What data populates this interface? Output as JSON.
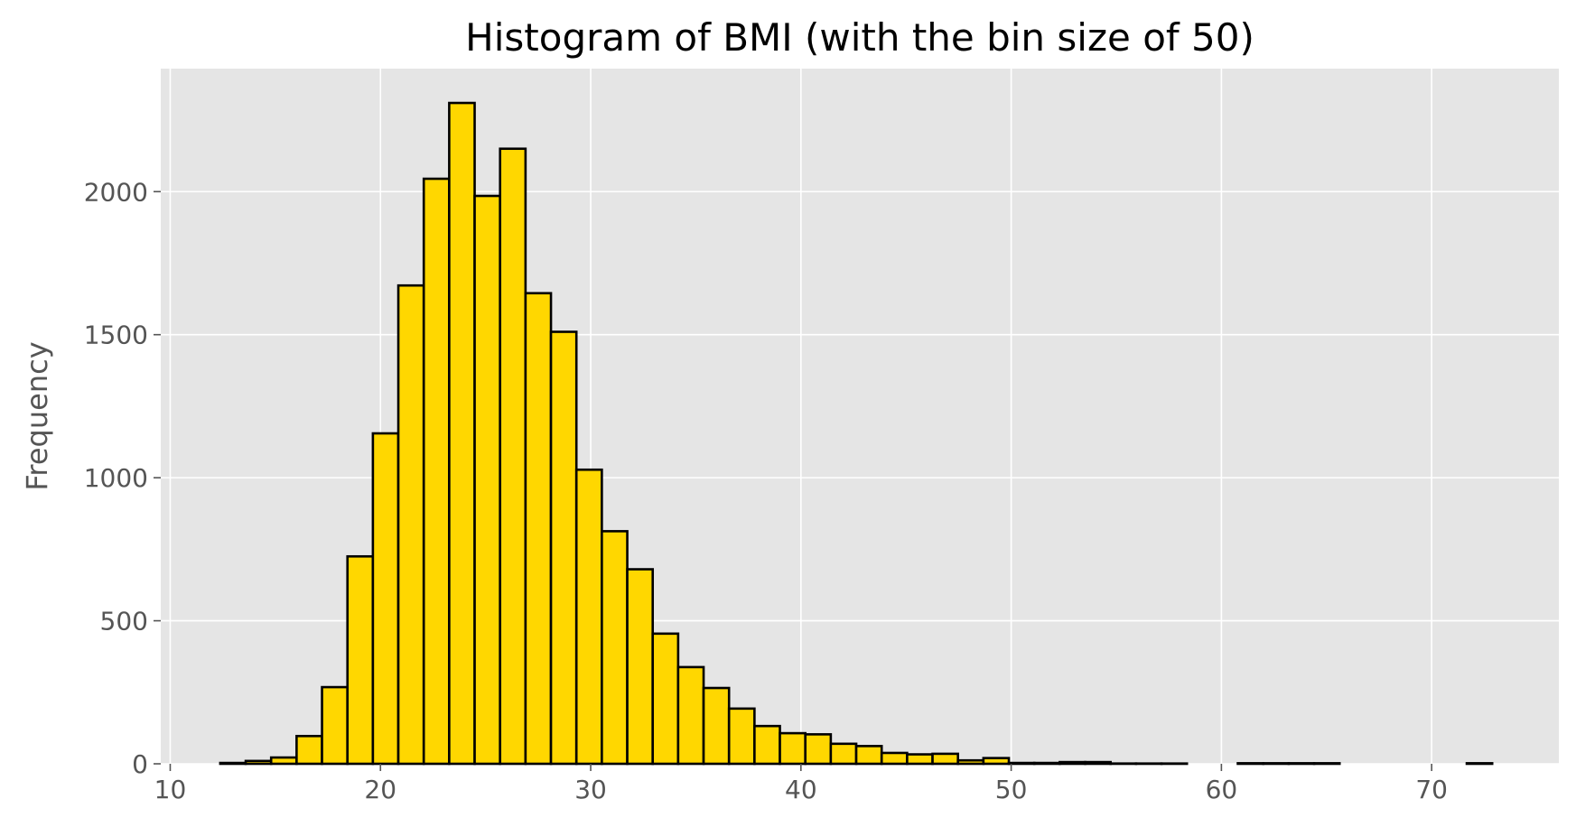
{
  "chart_data": {
    "type": "bar",
    "title": "Histogram of BMI (with the bin size of 50)",
    "xlabel": "",
    "ylabel": "Frequency",
    "xlim": [
      9.55,
      76.05
    ],
    "ylim": [
      0,
      2430
    ],
    "grid": true,
    "bin_edges": [
      12.38,
      13.59,
      14.8,
      16.01,
      17.22,
      18.43,
      19.64,
      20.85,
      22.06,
      23.27,
      24.48,
      25.69,
      26.9,
      28.11,
      29.32,
      30.53,
      31.74,
      32.95,
      34.16,
      35.37,
      36.58,
      37.79,
      39.0,
      40.21,
      41.42,
      42.63,
      43.84,
      45.05,
      46.26,
      47.47,
      48.68,
      49.89,
      51.1,
      52.31,
      53.52,
      54.73,
      55.94,
      57.15,
      58.36,
      59.57,
      60.78,
      61.99,
      63.2,
      64.41,
      65.62,
      66.83,
      68.04,
      69.25,
      70.46,
      71.67,
      72.88
    ],
    "values": [
      3,
      10,
      22,
      97,
      268,
      725,
      1155,
      1672,
      2045,
      2310,
      1985,
      2150,
      1645,
      1510,
      1028,
      813,
      680,
      455,
      338,
      265,
      193,
      132,
      107,
      103,
      70,
      62,
      38,
      33,
      35,
      12,
      20,
      3,
      3,
      6,
      6,
      1,
      1,
      1,
      0,
      0,
      2,
      2,
      2,
      2,
      0,
      0,
      0,
      0,
      0,
      2
    ],
    "x_ticks": [
      "10",
      "20",
      "30",
      "40",
      "50",
      "60",
      "70"
    ],
    "y_ticks": [
      "0",
      "500",
      "1000",
      "1500",
      "2000"
    ],
    "colors": {
      "bar_fill": "#FFD700",
      "bar_edge": "#000000",
      "plot_bg": "#E5E5E5",
      "grid": "#FFFFFF",
      "tick_text": "#555555"
    }
  }
}
